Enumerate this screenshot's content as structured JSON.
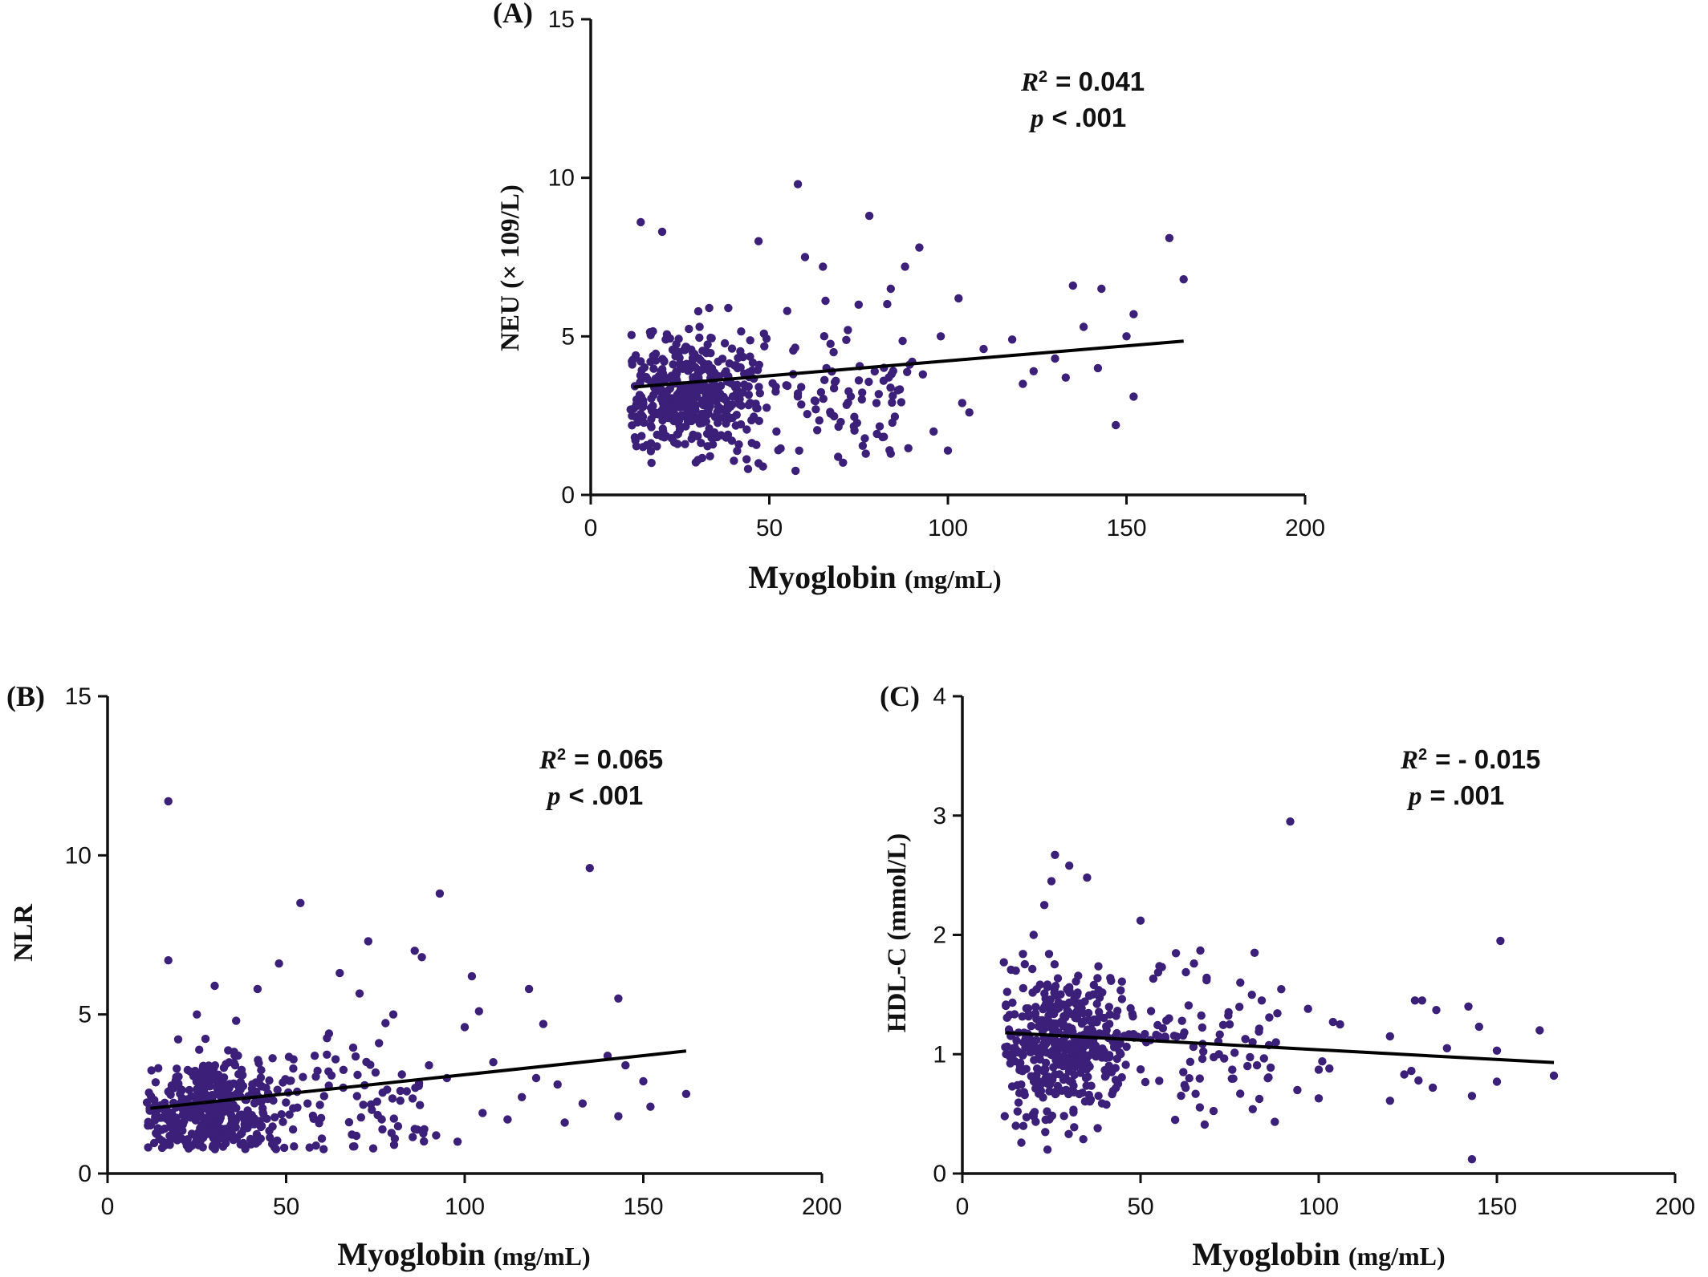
{
  "chart_data": [
    {
      "type": "scatter",
      "panel_label": "(A)",
      "xlabel": "Myoglobin",
      "xlabel_unit": "(mg/mL)",
      "ylabel": "NEU (× 109/L)",
      "xlim": [
        0,
        200
      ],
      "ylim": [
        0,
        15
      ],
      "xticks": [
        "0",
        "50",
        "100",
        "150",
        "200"
      ],
      "yticks": [
        "0",
        "5",
        "10",
        "15"
      ],
      "r2_label": "R",
      "r2_value": "= 0.041",
      "p_label": "p",
      "p_value": "< .001",
      "point_color": "#3b1f78",
      "regression": {
        "x": [
          12,
          166
        ],
        "y": [
          3.4,
          4.85
        ]
      },
      "cluster": {
        "x_center": 28,
        "x_spread": 9,
        "y_center": 3.2,
        "y_spread": 0.9,
        "count": 420
      },
      "points": [
        {
          "x": 14,
          "y": 8.6
        },
        {
          "x": 20,
          "y": 8.3
        },
        {
          "x": 47,
          "y": 8.0
        },
        {
          "x": 58,
          "y": 9.8
        },
        {
          "x": 78,
          "y": 8.8
        },
        {
          "x": 92,
          "y": 7.8
        },
        {
          "x": 162,
          "y": 8.1
        },
        {
          "x": 166,
          "y": 6.8
        },
        {
          "x": 60,
          "y": 7.5
        },
        {
          "x": 65,
          "y": 7.2
        },
        {
          "x": 88,
          "y": 7.2
        },
        {
          "x": 103,
          "y": 6.2
        },
        {
          "x": 135,
          "y": 6.6
        },
        {
          "x": 143,
          "y": 6.5
        },
        {
          "x": 75,
          "y": 6.0
        },
        {
          "x": 84,
          "y": 6.5
        },
        {
          "x": 150,
          "y": 5.0
        },
        {
          "x": 152,
          "y": 5.7
        },
        {
          "x": 147,
          "y": 2.2
        },
        {
          "x": 152,
          "y": 3.1
        },
        {
          "x": 142,
          "y": 4.0
        },
        {
          "x": 130,
          "y": 4.3
        },
        {
          "x": 121,
          "y": 3.5
        },
        {
          "x": 118,
          "y": 4.9
        },
        {
          "x": 104,
          "y": 2.9
        },
        {
          "x": 106,
          "y": 2.6
        },
        {
          "x": 96,
          "y": 2.0
        },
        {
          "x": 100,
          "y": 1.4
        },
        {
          "x": 84,
          "y": 1.3
        },
        {
          "x": 77,
          "y": 1.3
        },
        {
          "x": 47,
          "y": 1.0
        },
        {
          "x": 30,
          "y": 1.1
        },
        {
          "x": 110,
          "y": 4.6
        },
        {
          "x": 98,
          "y": 5.0
        },
        {
          "x": 90,
          "y": 4.2
        },
        {
          "x": 82,
          "y": 3.6
        },
        {
          "x": 72,
          "y": 5.2
        },
        {
          "x": 68,
          "y": 4.5
        },
        {
          "x": 63,
          "y": 2.7
        },
        {
          "x": 70,
          "y": 2.3
        },
        {
          "x": 80,
          "y": 2.9
        },
        {
          "x": 86,
          "y": 3.3
        },
        {
          "x": 93,
          "y": 3.8
        },
        {
          "x": 124,
          "y": 3.9
        },
        {
          "x": 133,
          "y": 3.7
        },
        {
          "x": 138,
          "y": 5.3
        },
        {
          "x": 55,
          "y": 5.8
        },
        {
          "x": 52,
          "y": 2.0
        },
        {
          "x": 58,
          "y": 3.2
        },
        {
          "x": 66,
          "y": 4.0
        }
      ]
    },
    {
      "type": "scatter",
      "panel_label": "(B)",
      "xlabel": "Myoglobin",
      "xlabel_unit": "(mg/mL)",
      "ylabel": "NLR",
      "xlim": [
        0,
        200
      ],
      "ylim": [
        0,
        15
      ],
      "xticks": [
        "0",
        "50",
        "100",
        "150",
        "200"
      ],
      "yticks": [
        "0",
        "5",
        "10",
        "15"
      ],
      "r2_label": "R",
      "r2_value": "= 0.065",
      "p_label": "p",
      "p_value": "< .001",
      "point_color": "#3b1f78",
      "regression": {
        "x": [
          12,
          162
        ],
        "y": [
          2.05,
          3.85
        ]
      },
      "cluster": {
        "x_center": 28,
        "x_spread": 9,
        "y_center": 2.0,
        "y_spread": 0.8,
        "count": 420
      },
      "points": [
        {
          "x": 17,
          "y": 11.7
        },
        {
          "x": 135,
          "y": 9.6
        },
        {
          "x": 93,
          "y": 8.8
        },
        {
          "x": 54,
          "y": 8.5
        },
        {
          "x": 73,
          "y": 7.3
        },
        {
          "x": 86,
          "y": 7.0
        },
        {
          "x": 88,
          "y": 6.8
        },
        {
          "x": 17,
          "y": 6.7
        },
        {
          "x": 65,
          "y": 6.3
        },
        {
          "x": 102,
          "y": 6.2
        },
        {
          "x": 118,
          "y": 5.8
        },
        {
          "x": 143,
          "y": 5.5
        },
        {
          "x": 104,
          "y": 5.1
        },
        {
          "x": 122,
          "y": 4.7
        },
        {
          "x": 100,
          "y": 4.6
        },
        {
          "x": 80,
          "y": 5.0
        },
        {
          "x": 76,
          "y": 4.1
        },
        {
          "x": 62,
          "y": 4.4
        },
        {
          "x": 58,
          "y": 3.7
        },
        {
          "x": 70,
          "y": 3.1
        },
        {
          "x": 82,
          "y": 2.6
        },
        {
          "x": 95,
          "y": 3.0
        },
        {
          "x": 108,
          "y": 3.5
        },
        {
          "x": 116,
          "y": 2.4
        },
        {
          "x": 126,
          "y": 2.8
        },
        {
          "x": 128,
          "y": 1.6
        },
        {
          "x": 133,
          "y": 2.2
        },
        {
          "x": 140,
          "y": 3.7
        },
        {
          "x": 143,
          "y": 1.8
        },
        {
          "x": 150,
          "y": 2.9
        },
        {
          "x": 152,
          "y": 2.1
        },
        {
          "x": 162,
          "y": 2.5
        },
        {
          "x": 92,
          "y": 1.2
        },
        {
          "x": 98,
          "y": 1.0
        },
        {
          "x": 86,
          "y": 1.4
        },
        {
          "x": 60,
          "y": 1.1
        },
        {
          "x": 105,
          "y": 1.9
        },
        {
          "x": 112,
          "y": 1.7
        },
        {
          "x": 74,
          "y": 2.0
        },
        {
          "x": 66,
          "y": 2.7
        },
        {
          "x": 52,
          "y": 3.3
        },
        {
          "x": 56,
          "y": 2.2
        },
        {
          "x": 48,
          "y": 6.6
        },
        {
          "x": 42,
          "y": 5.8
        },
        {
          "x": 30,
          "y": 5.9
        },
        {
          "x": 25,
          "y": 5.0
        },
        {
          "x": 36,
          "y": 4.8
        },
        {
          "x": 90,
          "y": 3.4
        },
        {
          "x": 120,
          "y": 3.0
        },
        {
          "x": 145,
          "y": 3.4
        }
      ]
    },
    {
      "type": "scatter",
      "panel_label": "(C)",
      "xlabel": "Myoglobin",
      "xlabel_unit": "(mg/mL)",
      "ylabel": "HDL-C (mmol/L)",
      "xlim": [
        0,
        200
      ],
      "ylim": [
        0,
        4
      ],
      "xticks": [
        "0",
        "50",
        "100",
        "150",
        "200"
      ],
      "yticks": [
        "0",
        "1",
        "2",
        "3",
        "4"
      ],
      "r2_label": "R",
      "r2_value": "= - 0.015",
      "p_label": "p",
      "p_value": "= .001",
      "point_color": "#3b1f78",
      "regression": {
        "x": [
          12,
          166
        ],
        "y": [
          1.18,
          0.93
        ]
      },
      "cluster": {
        "x_center": 28,
        "x_spread": 9,
        "y_center": 1.08,
        "y_spread": 0.28,
        "count": 420
      },
      "points": [
        {
          "x": 92,
          "y": 2.95
        },
        {
          "x": 26,
          "y": 2.67
        },
        {
          "x": 30,
          "y": 2.58
        },
        {
          "x": 25,
          "y": 2.45
        },
        {
          "x": 35,
          "y": 2.48
        },
        {
          "x": 23,
          "y": 2.25
        },
        {
          "x": 20,
          "y": 2.0
        },
        {
          "x": 50,
          "y": 2.12
        },
        {
          "x": 151,
          "y": 1.95
        },
        {
          "x": 82,
          "y": 1.85
        },
        {
          "x": 65,
          "y": 1.76
        },
        {
          "x": 56,
          "y": 1.73
        },
        {
          "x": 15,
          "y": 1.7
        },
        {
          "x": 78,
          "y": 1.6
        },
        {
          "x": 84,
          "y": 1.45
        },
        {
          "x": 127,
          "y": 1.45
        },
        {
          "x": 129,
          "y": 1.45
        },
        {
          "x": 142,
          "y": 1.4
        },
        {
          "x": 133,
          "y": 1.37
        },
        {
          "x": 97,
          "y": 1.38
        },
        {
          "x": 104,
          "y": 1.27
        },
        {
          "x": 106,
          "y": 1.25
        },
        {
          "x": 120,
          "y": 1.15
        },
        {
          "x": 145,
          "y": 1.23
        },
        {
          "x": 162,
          "y": 1.2
        },
        {
          "x": 150,
          "y": 1.03
        },
        {
          "x": 136,
          "y": 1.05
        },
        {
          "x": 126,
          "y": 0.86
        },
        {
          "x": 124,
          "y": 0.83
        },
        {
          "x": 128,
          "y": 0.78
        },
        {
          "x": 132,
          "y": 0.72
        },
        {
          "x": 120,
          "y": 0.61
        },
        {
          "x": 143,
          "y": 0.65
        },
        {
          "x": 150,
          "y": 0.77
        },
        {
          "x": 166,
          "y": 0.82
        },
        {
          "x": 143,
          "y": 0.12
        },
        {
          "x": 100,
          "y": 0.87
        },
        {
          "x": 101,
          "y": 0.94
        },
        {
          "x": 103,
          "y": 0.88
        },
        {
          "x": 94,
          "y": 0.7
        },
        {
          "x": 100,
          "y": 0.63
        },
        {
          "x": 68,
          "y": 0.41
        },
        {
          "x": 15,
          "y": 0.4
        },
        {
          "x": 20,
          "y": 0.48
        },
        {
          "x": 80,
          "y": 0.9
        },
        {
          "x": 88,
          "y": 1.1
        },
        {
          "x": 72,
          "y": 1.0
        },
        {
          "x": 62,
          "y": 0.85
        },
        {
          "x": 58,
          "y": 1.3
        },
        {
          "x": 75,
          "y": 1.25
        }
      ]
    }
  ]
}
